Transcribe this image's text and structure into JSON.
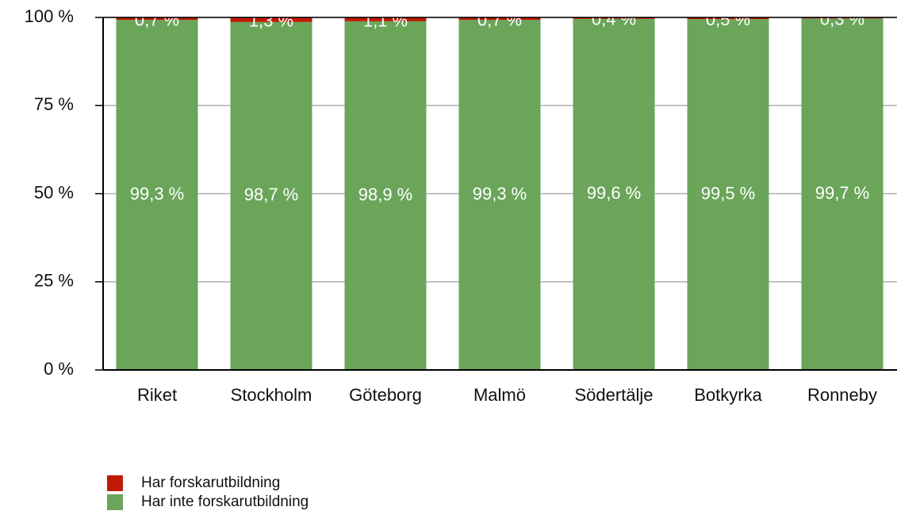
{
  "chart_data": {
    "type": "stacked_bar",
    "categories": [
      "Riket",
      "Stockholm",
      "Göteborg",
      "Malmö",
      "Södertälje",
      "Botkyrka",
      "Ronneby"
    ],
    "series": [
      {
        "name": "Har forskarutbildning",
        "color": "#c01a06",
        "values": [
          0.7,
          1.3,
          1.1,
          0.7,
          0.4,
          0.5,
          0.3
        ],
        "value_labels": [
          "0,7 %",
          "1,3 %",
          "1,1 %",
          "0,7 %",
          "0,4 %",
          "0,5 %",
          "0,3 %"
        ]
      },
      {
        "name": "Har inte forskarutbildning",
        "color": "#6aa55a",
        "values": [
          99.3,
          98.7,
          98.9,
          99.3,
          99.6,
          99.5,
          99.7
        ],
        "value_labels": [
          "99,3 %",
          "98,7 %",
          "98,9 %",
          "99,3 %",
          "99,6 %",
          "99,5 %",
          "99,7 %"
        ]
      }
    ],
    "ylim": [
      0,
      100
    ],
    "yticks": [
      {
        "value": 0,
        "label": "0 %"
      },
      {
        "value": 25,
        "label": "25 %"
      },
      {
        "value": 50,
        "label": "50 %"
      },
      {
        "value": 75,
        "label": "75 %"
      },
      {
        "value": 100,
        "label": "100 %"
      }
    ],
    "grid": true,
    "legend": "bottom-left"
  }
}
